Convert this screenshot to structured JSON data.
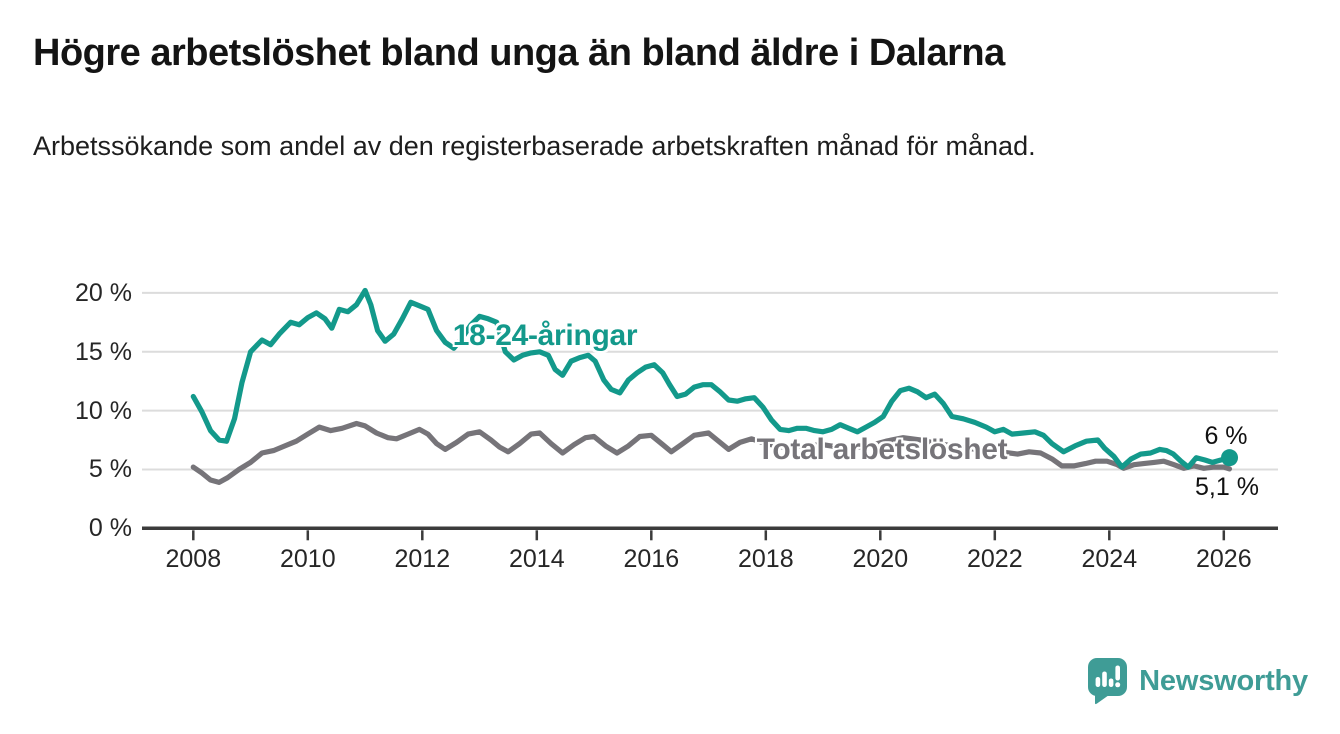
{
  "header": {
    "title": "Högre arbetslöshet bland unga än bland äldre i Dalarna",
    "subtitle": "Arbetssökande som andel av den registerbaserade arbetskraften månad för månad."
  },
  "chart_data": {
    "type": "line",
    "unit": "%",
    "grid": "horizontal",
    "legend_position": "inline-labels",
    "x_axis": {
      "ticks": [
        {
          "value": 2008,
          "label": "2008"
        },
        {
          "value": 2010,
          "label": "2010"
        },
        {
          "value": 2012,
          "label": "2012"
        },
        {
          "value": 2014,
          "label": "2014"
        },
        {
          "value": 2016,
          "label": "2016"
        },
        {
          "value": 2018,
          "label": "2018"
        },
        {
          "value": 2020,
          "label": "2020"
        },
        {
          "value": 2022,
          "label": "2022"
        },
        {
          "value": 2024,
          "label": "2024"
        },
        {
          "value": 2026,
          "label": "2026"
        }
      ],
      "range": [
        2007.1,
        2027.0
      ]
    },
    "y_axis": {
      "ticks": [
        {
          "value": 0,
          "label": "0 %"
        },
        {
          "value": 5,
          "label": "5 %"
        },
        {
          "value": 10,
          "label": "10 %"
        },
        {
          "value": 15,
          "label": "15 %"
        },
        {
          "value": 20,
          "label": "20 %"
        }
      ],
      "range": [
        0,
        21.5
      ]
    },
    "series": [
      {
        "name": "Total arbetslöshet",
        "color": "#767479",
        "end_value_label": "5,1 %",
        "end_dot": false,
        "points": [
          [
            2008.0,
            5.2
          ],
          [
            2008.15,
            4.7
          ],
          [
            2008.3,
            4.1
          ],
          [
            2008.45,
            3.9
          ],
          [
            2008.6,
            4.3
          ],
          [
            2008.8,
            5.0
          ],
          [
            2009.0,
            5.6
          ],
          [
            2009.2,
            6.4
          ],
          [
            2009.4,
            6.6
          ],
          [
            2009.6,
            7.0
          ],
          [
            2009.8,
            7.4
          ],
          [
            2010.0,
            8.0
          ],
          [
            2010.2,
            8.6
          ],
          [
            2010.4,
            8.3
          ],
          [
            2010.6,
            8.5
          ],
          [
            2010.85,
            8.9
          ],
          [
            2011.0,
            8.7
          ],
          [
            2011.2,
            8.1
          ],
          [
            2011.4,
            7.7
          ],
          [
            2011.55,
            7.6
          ],
          [
            2011.75,
            8.0
          ],
          [
            2011.95,
            8.4
          ],
          [
            2012.1,
            8.0
          ],
          [
            2012.25,
            7.2
          ],
          [
            2012.4,
            6.7
          ],
          [
            2012.6,
            7.3
          ],
          [
            2012.8,
            8.0
          ],
          [
            2013.0,
            8.2
          ],
          [
            2013.2,
            7.5
          ],
          [
            2013.35,
            6.9
          ],
          [
            2013.5,
            6.5
          ],
          [
            2013.7,
            7.2
          ],
          [
            2013.9,
            8.0
          ],
          [
            2014.05,
            8.1
          ],
          [
            2014.25,
            7.2
          ],
          [
            2014.45,
            6.4
          ],
          [
            2014.65,
            7.1
          ],
          [
            2014.85,
            7.7
          ],
          [
            2015.0,
            7.8
          ],
          [
            2015.2,
            7.0
          ],
          [
            2015.4,
            6.4
          ],
          [
            2015.6,
            7.0
          ],
          [
            2015.8,
            7.8
          ],
          [
            2016.0,
            7.9
          ],
          [
            2016.2,
            7.1
          ],
          [
            2016.35,
            6.5
          ],
          [
            2016.55,
            7.2
          ],
          [
            2016.75,
            7.9
          ],
          [
            2017.0,
            8.1
          ],
          [
            2017.2,
            7.3
          ],
          [
            2017.35,
            6.7
          ],
          [
            2017.55,
            7.3
          ],
          [
            2017.75,
            7.6
          ],
          [
            2018.0,
            7.2
          ],
          [
            2018.3,
            6.9
          ],
          [
            2018.6,
            7.0
          ],
          [
            2019.0,
            7.1
          ],
          [
            2019.4,
            6.8
          ],
          [
            2019.8,
            7.0
          ],
          [
            2020.1,
            7.4
          ],
          [
            2020.4,
            7.7
          ],
          [
            2020.7,
            7.5
          ],
          [
            2021.0,
            7.2
          ],
          [
            2021.4,
            6.9
          ],
          [
            2021.8,
            6.6
          ],
          [
            2022.1,
            6.5
          ],
          [
            2022.4,
            6.3
          ],
          [
            2022.6,
            6.5
          ],
          [
            2022.8,
            6.4
          ],
          [
            2023.0,
            5.9
          ],
          [
            2023.17,
            5.3
          ],
          [
            2023.38,
            5.3
          ],
          [
            2023.58,
            5.5
          ],
          [
            2023.76,
            5.7
          ],
          [
            2023.96,
            5.7
          ],
          [
            2024.14,
            5.4
          ],
          [
            2024.25,
            5.1
          ],
          [
            2024.43,
            5.4
          ],
          [
            2024.6,
            5.5
          ],
          [
            2024.78,
            5.6
          ],
          [
            2024.95,
            5.7
          ],
          [
            2025.13,
            5.4
          ],
          [
            2025.3,
            5.1
          ],
          [
            2025.48,
            5.3
          ],
          [
            2025.65,
            5.1
          ],
          [
            2025.83,
            5.2
          ],
          [
            2026.0,
            5.2
          ],
          [
            2026.1,
            5.05
          ]
        ]
      },
      {
        "name": "18-24-åringar",
        "color": "#13998b",
        "end_value_label": "6 %",
        "end_dot": true,
        "points": [
          [
            2008.0,
            11.2
          ],
          [
            2008.15,
            9.9
          ],
          [
            2008.3,
            8.3
          ],
          [
            2008.45,
            7.5
          ],
          [
            2008.58,
            7.4
          ],
          [
            2008.72,
            9.3
          ],
          [
            2008.85,
            12.4
          ],
          [
            2009.0,
            15.0
          ],
          [
            2009.2,
            16.0
          ],
          [
            2009.35,
            15.6
          ],
          [
            2009.5,
            16.5
          ],
          [
            2009.7,
            17.5
          ],
          [
            2009.85,
            17.3
          ],
          [
            2010.0,
            17.9
          ],
          [
            2010.15,
            18.3
          ],
          [
            2010.3,
            17.8
          ],
          [
            2010.42,
            17.0
          ],
          [
            2010.55,
            18.6
          ],
          [
            2010.7,
            18.4
          ],
          [
            2010.85,
            19.0
          ],
          [
            2011.0,
            20.2
          ],
          [
            2011.1,
            19.0
          ],
          [
            2011.22,
            16.8
          ],
          [
            2011.35,
            15.9
          ],
          [
            2011.5,
            16.5
          ],
          [
            2011.65,
            17.8
          ],
          [
            2011.8,
            19.2
          ],
          [
            2011.95,
            18.9
          ],
          [
            2012.1,
            18.6
          ],
          [
            2012.25,
            16.8
          ],
          [
            2012.4,
            15.8
          ],
          [
            2012.55,
            15.3
          ],
          [
            2012.7,
            16.2
          ],
          [
            2012.85,
            17.3
          ],
          [
            2013.0,
            18.0
          ],
          [
            2013.15,
            17.8
          ],
          [
            2013.3,
            17.5
          ],
          [
            2013.45,
            15.0
          ],
          [
            2013.6,
            14.3
          ],
          [
            2013.75,
            14.7
          ],
          [
            2013.9,
            14.9
          ],
          [
            2014.05,
            15.0
          ],
          [
            2014.2,
            14.7
          ],
          [
            2014.32,
            13.5
          ],
          [
            2014.45,
            13.0
          ],
          [
            2014.6,
            14.2
          ],
          [
            2014.75,
            14.5
          ],
          [
            2014.9,
            14.7
          ],
          [
            2015.02,
            14.2
          ],
          [
            2015.17,
            12.6
          ],
          [
            2015.3,
            11.8
          ],
          [
            2015.45,
            11.5
          ],
          [
            2015.6,
            12.6
          ],
          [
            2015.75,
            13.2
          ],
          [
            2015.9,
            13.7
          ],
          [
            2016.05,
            13.9
          ],
          [
            2016.2,
            13.2
          ],
          [
            2016.32,
            12.2
          ],
          [
            2016.45,
            11.2
          ],
          [
            2016.6,
            11.4
          ],
          [
            2016.75,
            12.0
          ],
          [
            2016.9,
            12.2
          ],
          [
            2017.05,
            12.2
          ],
          [
            2017.2,
            11.6
          ],
          [
            2017.35,
            10.9
          ],
          [
            2017.5,
            10.8
          ],
          [
            2017.65,
            11.0
          ],
          [
            2017.8,
            11.1
          ],
          [
            2017.95,
            10.3
          ],
          [
            2018.1,
            9.2
          ],
          [
            2018.25,
            8.4
          ],
          [
            2018.4,
            8.3
          ],
          [
            2018.55,
            8.5
          ],
          [
            2018.7,
            8.5
          ],
          [
            2018.85,
            8.3
          ],
          [
            2019.0,
            8.2
          ],
          [
            2019.15,
            8.4
          ],
          [
            2019.3,
            8.8
          ],
          [
            2019.45,
            8.5
          ],
          [
            2019.6,
            8.2
          ],
          [
            2019.75,
            8.6
          ],
          [
            2019.9,
            9.0
          ],
          [
            2020.05,
            9.5
          ],
          [
            2020.2,
            10.8
          ],
          [
            2020.35,
            11.7
          ],
          [
            2020.5,
            11.9
          ],
          [
            2020.65,
            11.6
          ],
          [
            2020.8,
            11.1
          ],
          [
            2020.95,
            11.4
          ],
          [
            2021.1,
            10.6
          ],
          [
            2021.25,
            9.5
          ],
          [
            2021.45,
            9.3
          ],
          [
            2021.65,
            9.0
          ],
          [
            2021.85,
            8.6
          ],
          [
            2022.0,
            8.2
          ],
          [
            2022.15,
            8.4
          ],
          [
            2022.3,
            8.0
          ],
          [
            2022.5,
            8.1
          ],
          [
            2022.7,
            8.2
          ],
          [
            2022.85,
            7.9
          ],
          [
            2023.0,
            7.2
          ],
          [
            2023.2,
            6.5
          ],
          [
            2023.4,
            7.0
          ],
          [
            2023.6,
            7.4
          ],
          [
            2023.8,
            7.5
          ],
          [
            2023.92,
            6.8
          ],
          [
            2024.08,
            6.1
          ],
          [
            2024.22,
            5.2
          ],
          [
            2024.38,
            5.9
          ],
          [
            2024.55,
            6.3
          ],
          [
            2024.72,
            6.4
          ],
          [
            2024.88,
            6.7
          ],
          [
            2025.0,
            6.6
          ],
          [
            2025.12,
            6.3
          ],
          [
            2025.25,
            5.7
          ],
          [
            2025.38,
            5.2
          ],
          [
            2025.52,
            6.0
          ],
          [
            2025.67,
            5.8
          ],
          [
            2025.8,
            5.6
          ],
          [
            2025.95,
            5.8
          ],
          [
            2026.1,
            6.0
          ]
        ]
      }
    ],
    "colors": {
      "gridline": "#dcdcdc",
      "axis": "#3b3b3b",
      "tick_label": "#262626"
    }
  },
  "footer": {
    "logo_text": "Newsworthy",
    "logo_color": "#3f9c96"
  }
}
